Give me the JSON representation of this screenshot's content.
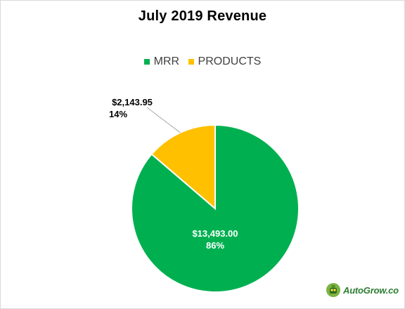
{
  "chart_data": {
    "type": "pie",
    "title": "July 2019 Revenue",
    "legend_position": "top",
    "series": [
      {
        "name": "MRR",
        "value": 13493.0,
        "value_label": "$13,493.00",
        "percent_label": "86%",
        "color": "#00b050"
      },
      {
        "name": "PRODUCTS",
        "value": 2143.95,
        "value_label": "$2,143.95",
        "percent_label": "14%",
        "color": "#ffc000"
      }
    ]
  },
  "branding": {
    "text": "AutoGrow.co",
    "logo_icon": "autogrow-logo-icon",
    "text_color": "#2e7d32"
  }
}
